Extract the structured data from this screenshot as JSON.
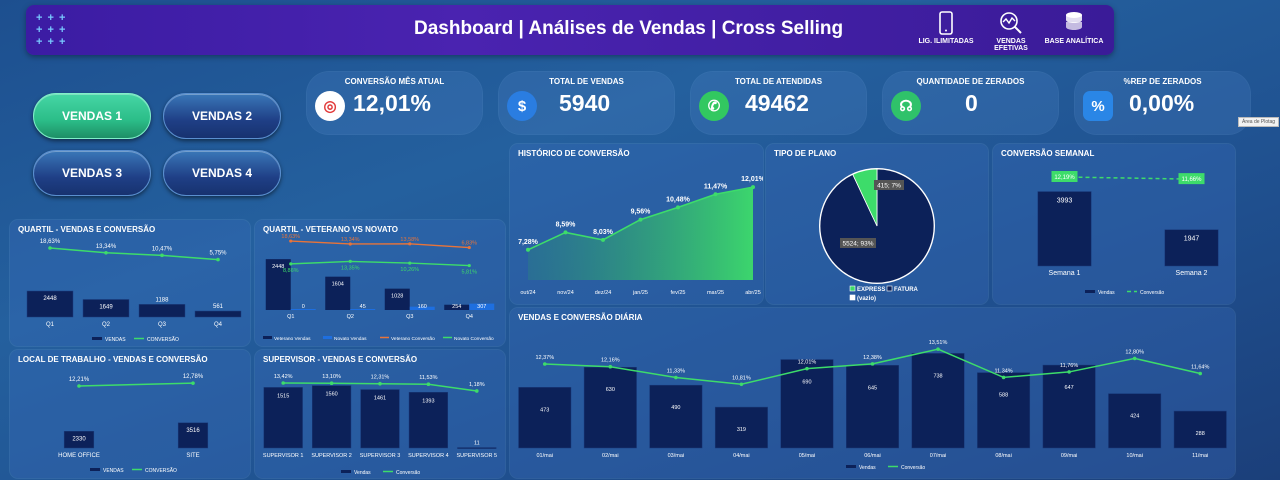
{
  "header": {
    "title": "Dashboard | Análises de Vendas | Cross Selling",
    "icons": [
      {
        "name": "phone-icon",
        "label": "LIG. ILIMITADAS"
      },
      {
        "name": "sales-chart-icon",
        "label": "VENDAS EFETIVAS"
      },
      {
        "name": "database-icon",
        "label": "BASE ANALÍTICA"
      }
    ],
    "dots": "+ + +\n+ + +\n+ + +"
  },
  "nav": [
    "VENDAS 1",
    "VENDAS 2",
    "VENDAS 3",
    "VENDAS 4"
  ],
  "kpis": [
    {
      "label": "CONVERSÃO MÊS ATUAL",
      "value": "12,01%",
      "icon": "target-icon",
      "color": "#e23b3b",
      "glyph": "◎"
    },
    {
      "label": "TOTAL DE VENDAS",
      "value": "5940",
      "icon": "dollar-growth-icon",
      "color": "#2a7de1",
      "glyph": "$"
    },
    {
      "label": "TOTAL DE ATENDIDAS",
      "value": "49462",
      "icon": "phone-call-icon",
      "color": "#32c860",
      "glyph": "✆"
    },
    {
      "label": "QUANTIDADE DE ZERADOS",
      "value": "0",
      "icon": "headset-icon",
      "color": "#2fc26a",
      "glyph": "☊"
    },
    {
      "label": "%REP DE ZERADOS",
      "value": "0,00%",
      "icon": "percent-icon",
      "color": "#2a86e6",
      "glyph": "%"
    }
  ],
  "side_tab": "Área de Plotag",
  "chart_data": [
    {
      "id": "historico",
      "type": "area",
      "title": "HISTÓRICO DE CONVERSÃO",
      "categories": [
        "out/24",
        "nov/24",
        "dez/24",
        "jan/25",
        "fev/25",
        "mar/25",
        "abr/25"
      ],
      "values": [
        7.28,
        8.59,
        8.03,
        9.56,
        10.48,
        11.47,
        12.01
      ],
      "labels": [
        "7,28%",
        "8,59%",
        "8,03%",
        "9,56%",
        "10,48%",
        "11,47%",
        "12,01%"
      ]
    },
    {
      "id": "tipo",
      "type": "pie",
      "title": "TIPO DE PLANO",
      "slices": [
        {
          "name": "FATURA",
          "value": 5524,
          "label": "5524; 93%",
          "color": "#0c2159"
        },
        {
          "name": "EXPRESS",
          "value": 415,
          "label": "415; 7%",
          "color": "#3ddc6a"
        },
        {
          "name": "(vazio)",
          "value": 0,
          "label": "",
          "color": "#ffffff"
        }
      ],
      "legend": [
        "EXPRESS",
        "FATURA",
        "(vazio)"
      ]
    },
    {
      "id": "semanal",
      "type": "bar",
      "title": "CONVERSÃO SEMANAL",
      "categories": [
        "Semana 1",
        "Semana 2"
      ],
      "values": [
        3993,
        1947
      ],
      "line": [
        12.19,
        11.66
      ],
      "line_labels": [
        "12,19%",
        "11,66%"
      ],
      "legend": [
        "Vendas",
        "Conversão"
      ]
    },
    {
      "id": "quartil",
      "type": "bar",
      "title": "QUARTIL - VENDAS E CONVERSÃO",
      "categories": [
        "Q1",
        "Q2",
        "Q3",
        "Q4"
      ],
      "values": [
        2448,
        1649,
        1188,
        561
      ],
      "line": [
        18.63,
        13.34,
        10.47,
        5.75
      ],
      "line_labels": [
        "18,63%",
        "13,34%",
        "10,47%",
        "5,75%"
      ],
      "legend": [
        "VENDAS",
        "CONVERSÃO"
      ]
    },
    {
      "id": "veterano",
      "type": "bar",
      "title": "QUARTIL - VETERANO VS NOVATO",
      "categories": [
        "Q1",
        "Q2",
        "Q3",
        "Q4"
      ],
      "series": [
        {
          "name": "Veterano Vendas",
          "values": [
            2448,
            1604,
            1028,
            254
          ]
        },
        {
          "name": "Novato Vendas",
          "values": [
            0,
            45,
            160,
            307
          ]
        }
      ],
      "lines": [
        {
          "name": "Veterano Conversão",
          "values": [
            18.63,
            13.34,
            13.58,
            6.83
          ],
          "labels": [
            "18,63%",
            "13,34%",
            "13,58%",
            "6,83%"
          ]
        },
        {
          "name": "Novato Conversão",
          "values": [
            8.86,
            13.35,
            10.26,
            5.81
          ],
          "labels": [
            "8,86%",
            "13,35%",
            "10,26%",
            "5,81%"
          ]
        }
      ]
    },
    {
      "id": "local",
      "type": "bar",
      "title": "LOCAL DE TRABALHO - VENDAS E CONVERSÃO",
      "categories": [
        "HOME OFFICE",
        "SITE"
      ],
      "values": [
        2330,
        3516
      ],
      "line": [
        12.21,
        12.78
      ],
      "line_labels": [
        "12,21%",
        "12,78%"
      ],
      "legend": [
        "VENDAS",
        "CONVERSÃO"
      ]
    },
    {
      "id": "supervisor",
      "type": "bar",
      "title": "SUPERVISOR - VENDAS E CONVERSÃO",
      "categories": [
        "SUPERVISOR 1",
        "SUPERVISOR 2",
        "SUPERVISOR 3",
        "SUPERVISOR 4",
        "SUPERVISOR 5"
      ],
      "values": [
        1515,
        1560,
        1461,
        1393,
        11
      ],
      "line": [
        13.42,
        13.1,
        12.31,
        11.53,
        1.18
      ],
      "line_labels": [
        "13,42%",
        "13,10%",
        "12,31%",
        "11,53%",
        "1,18%"
      ],
      "legend": [
        "Vendas",
        "Conversão"
      ]
    },
    {
      "id": "diaria",
      "type": "bar",
      "title": "VENDAS E CONVERSÃO DIÁRIA",
      "categories": [
        "01/mai",
        "02/mai",
        "03/mai",
        "04/mai",
        "05/mai",
        "06/mai",
        "07/mai",
        "08/mai",
        "09/mai",
        "10/mai",
        "11/mai"
      ],
      "values": [
        473,
        630,
        490,
        319,
        690,
        645,
        738,
        588,
        647,
        424,
        288
      ],
      "line": [
        12.37,
        12.16,
        11.33,
        10.81,
        12.01,
        12.38,
        13.51,
        11.34,
        11.76,
        12.8,
        11.64
      ],
      "line_labels": [
        "12,37%",
        "12,16%",
        "11,33%",
        "10,81%",
        "12,01%",
        "12,38%",
        "13,51%",
        "11,34%",
        "11,76%",
        "12,80%",
        "11,64%"
      ],
      "legend": [
        "Vendas",
        "Conversão"
      ]
    }
  ]
}
